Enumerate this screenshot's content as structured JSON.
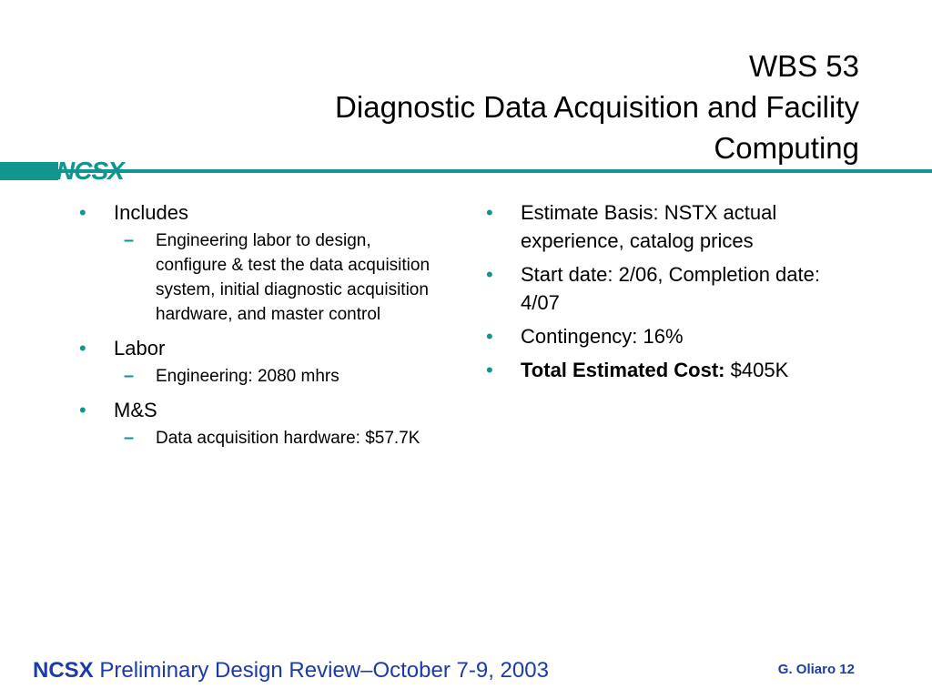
{
  "header": {
    "logo_text": "NCSX",
    "title_line1": "WBS 53",
    "title_line2": "Diagnostic Data Acquisition and Facility",
    "title_line3": "Computing"
  },
  "left_column": {
    "includes_label": "Includes",
    "includes_detail": "Engineering labor to design, configure & test the data acquisition system, initial diagnostic acquisition hardware, and master control",
    "labor_label": "Labor",
    "labor_detail": "Engineering: 2080 mhrs",
    "ms_label": "M&S",
    "ms_detail": "Data acquisition hardware: $57.7K"
  },
  "right_column": {
    "estimate_basis": "Estimate Basis: NSTX actual experience, catalog prices",
    "dates": "Start date: 2/06, Completion date: 4/07",
    "contingency": "Contingency: 16%",
    "total_label": "Total Estimated Cost:",
    "total_value": "$405K"
  },
  "footer": {
    "brand": "NCSX",
    "event": "Preliminary Design Review–October 7-9, 2003",
    "author_page": "G. Oliaro 12"
  },
  "colors": {
    "accent_teal": "#12948f",
    "footer_blue": "#1b3bab"
  }
}
